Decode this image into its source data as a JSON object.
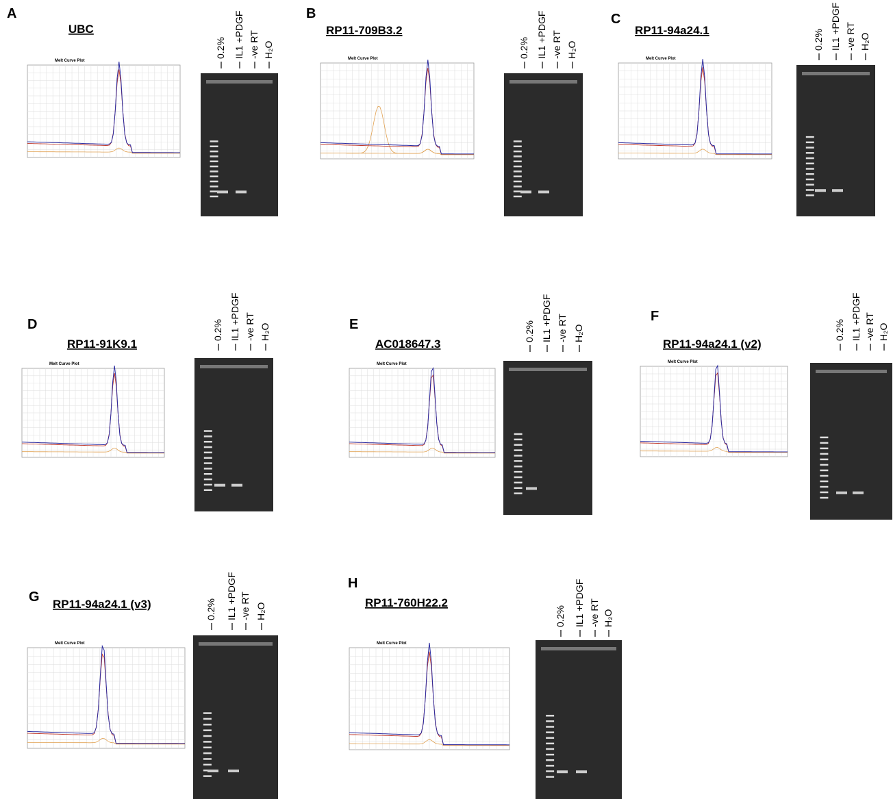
{
  "plot_title": "Melt Curve Plot",
  "panels": [
    {
      "letter": "A",
      "title": "UBC",
      "lanes": [
        "0.2%",
        "IL1 +PDGF",
        "-ve RT",
        "H₂O"
      ]
    },
    {
      "letter": "B",
      "title": "RP11-709B3.2",
      "lanes": [
        "0.2%",
        "IL1 +PDGF",
        "-ve RT",
        "H₂O"
      ]
    },
    {
      "letter": "C",
      "title": "RP11-94a24.1",
      "lanes": [
        "0.2%",
        "IL1 +PDGF",
        "-ve RT",
        "H₂O"
      ]
    },
    {
      "letter": "D",
      "title": "RP11-91K9.1",
      "lanes": [
        "0.2%",
        "IL1 +PDGF",
        "-ve RT",
        "H₂O"
      ]
    },
    {
      "letter": "E",
      "title": "AC018647.3",
      "lanes": [
        "0.2%",
        "IL1 +PDGF",
        "-ve RT",
        "H₂O"
      ]
    },
    {
      "letter": "F",
      "title": "RP11-94a24.1 (v2)",
      "lanes": [
        "0.2%",
        "IL1 +PDGF",
        "-ve RT",
        "H₂O"
      ]
    },
    {
      "letter": "G",
      "title": "RP11-94a24.1 (v3)",
      "lanes": [
        "0.2%",
        "IL1 +PDGF",
        "-ve RT",
        "H₂O"
      ]
    },
    {
      "letter": "H",
      "title": "RP11-760H22.2",
      "lanes": [
        "0.2%",
        "IL1 +PDGF",
        "-ve RT",
        "H₂O"
      ]
    }
  ]
}
